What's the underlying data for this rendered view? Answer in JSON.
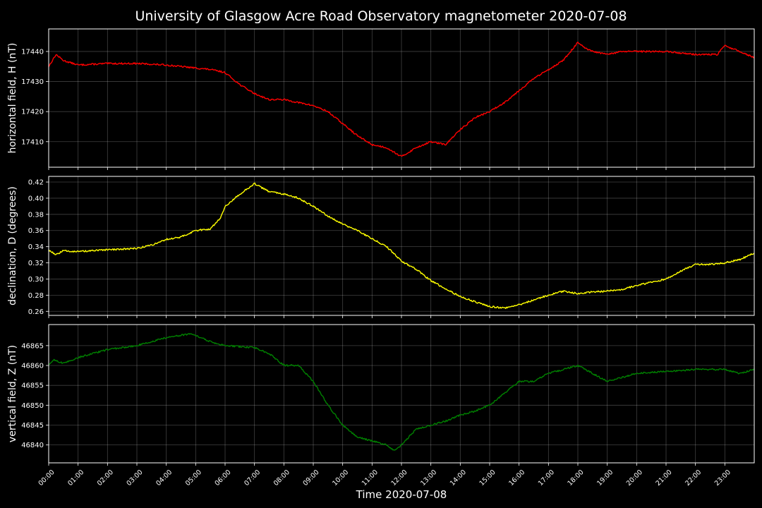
{
  "title": "University of Glasgow Acre Road Observatory magnetometer 2020-07-08",
  "xlabel": "Time 2020-07-08",
  "x_ticks": [
    "00:00",
    "01:00",
    "02:00",
    "03:00",
    "04:00",
    "05:00",
    "06:00",
    "07:00",
    "08:00",
    "09:00",
    "10:00",
    "11:00",
    "12:00",
    "13:00",
    "14:00",
    "15:00",
    "16:00",
    "17:00",
    "18:00",
    "19:00",
    "20:00",
    "21:00",
    "22:00",
    "23:00"
  ],
  "chart_data": [
    {
      "type": "line",
      "ylabel": "horizontal field, H (nT)",
      "color": "#ff0000",
      "xlim": [
        "00:00",
        "24:00"
      ],
      "ylim": [
        17401.5,
        17447.5
      ],
      "y_ticks": [
        17410,
        17420,
        17430,
        17440
      ],
      "grid": true,
      "series": [
        {
          "x": [
            "00:00",
            "00:15",
            "00:30",
            "01:00",
            "02:00",
            "03:00",
            "04:00",
            "05:00",
            "05:30",
            "06:00",
            "06:30",
            "07:00",
            "07:30",
            "08:00",
            "08:30",
            "09:00",
            "09:30",
            "10:00",
            "10:30",
            "11:00",
            "11:30",
            "12:00",
            "12:30",
            "13:00",
            "13:30",
            "14:00",
            "14:30",
            "15:00",
            "15:30",
            "16:00",
            "16:30",
            "17:00",
            "17:30",
            "18:00",
            "18:15",
            "18:30",
            "19:00",
            "19:30",
            "20:00",
            "21:00",
            "22:00",
            "22:45",
            "23:00",
            "23:30",
            "24:00"
          ],
          "y": [
            17435,
            17439,
            17437,
            17435.5,
            17436,
            17436,
            17435.5,
            17434.5,
            17434,
            17433,
            17429,
            17426,
            17424,
            17424,
            17423,
            17422,
            17420,
            17416,
            17412,
            17409,
            17408,
            17405,
            17408,
            17410,
            17409,
            17414,
            17418,
            17420,
            17423,
            17427,
            17431,
            17434,
            17437,
            17443,
            17441,
            17440,
            17439,
            17440,
            17440,
            17440,
            17439,
            17439,
            17442,
            17440,
            17438
          ]
        }
      ]
    },
    {
      "type": "line",
      "ylabel": "declination, D (degrees)",
      "color": "#ffff00",
      "xlim": [
        "00:00",
        "24:00"
      ],
      "ylim": [
        0.255,
        0.427
      ],
      "y_ticks": [
        0.26,
        0.28,
        0.3,
        0.32,
        0.34,
        0.36,
        0.38,
        0.4,
        0.42
      ],
      "grid": true,
      "series": [
        {
          "x": [
            "00:00",
            "00:15",
            "00:30",
            "01:00",
            "02:00",
            "03:00",
            "03:30",
            "04:00",
            "04:30",
            "05:00",
            "05:30",
            "05:50",
            "06:00",
            "06:30",
            "07:00",
            "07:30",
            "08:00",
            "08:30",
            "09:00",
            "09:30",
            "10:00",
            "10:30",
            "11:00",
            "11:30",
            "12:00",
            "12:30",
            "13:00",
            "13:30",
            "14:00",
            "14:30",
            "15:00",
            "15:30",
            "16:00",
            "16:30",
            "17:00",
            "17:30",
            "18:00",
            "18:30",
            "19:00",
            "19:30",
            "20:00",
            "20:30",
            "21:00",
            "21:30",
            "22:00",
            "22:30",
            "23:00",
            "23:30",
            "24:00"
          ],
          "y": [
            0.336,
            0.33,
            0.335,
            0.334,
            0.336,
            0.338,
            0.342,
            0.349,
            0.352,
            0.36,
            0.362,
            0.375,
            0.39,
            0.405,
            0.418,
            0.408,
            0.405,
            0.4,
            0.39,
            0.378,
            0.368,
            0.36,
            0.35,
            0.34,
            0.322,
            0.312,
            0.298,
            0.288,
            0.278,
            0.272,
            0.266,
            0.264,
            0.268,
            0.274,
            0.28,
            0.285,
            0.282,
            0.284,
            0.285,
            0.287,
            0.292,
            0.296,
            0.3,
            0.31,
            0.318,
            0.318,
            0.32,
            0.324,
            0.332
          ]
        }
      ]
    },
    {
      "type": "line",
      "ylabel": "vertical field, Z (nT)",
      "color": "#008000",
      "xlim": [
        "00:00",
        "24:00"
      ],
      "ylim": [
        46835.5,
        46870.3
      ],
      "y_ticks": [
        46840,
        46845,
        46850,
        46855,
        46860,
        46865
      ],
      "grid": true,
      "series": [
        {
          "x": [
            "00:00",
            "00:10",
            "00:30",
            "01:00",
            "02:00",
            "03:00",
            "04:00",
            "04:50",
            "05:30",
            "06:00",
            "07:00",
            "07:30",
            "08:00",
            "08:30",
            "09:00",
            "09:30",
            "10:00",
            "10:30",
            "11:00",
            "11:30",
            "11:45",
            "12:00",
            "12:30",
            "13:00",
            "13:30",
            "14:00",
            "14:30",
            "15:00",
            "15:30",
            "16:00",
            "16:30",
            "17:00",
            "17:30",
            "18:00",
            "18:30",
            "19:00",
            "19:30",
            "20:00",
            "21:00",
            "22:00",
            "23:00",
            "23:30",
            "24:00"
          ],
          "y": [
            46860,
            46861.5,
            46860.5,
            46862,
            46864,
            46865,
            46867,
            46868,
            46866,
            46865,
            46864.5,
            46863,
            46860,
            46860,
            46856,
            46850,
            46845,
            46842,
            46841,
            46840,
            46838.5,
            46840,
            46844,
            46845,
            46846,
            46847.5,
            46848.5,
            46850,
            46853,
            46856,
            46856,
            46858,
            46859,
            46860,
            46858,
            46856,
            46857,
            46858,
            46858.5,
            46859,
            46859,
            46858,
            46859
          ]
        }
      ]
    }
  ]
}
